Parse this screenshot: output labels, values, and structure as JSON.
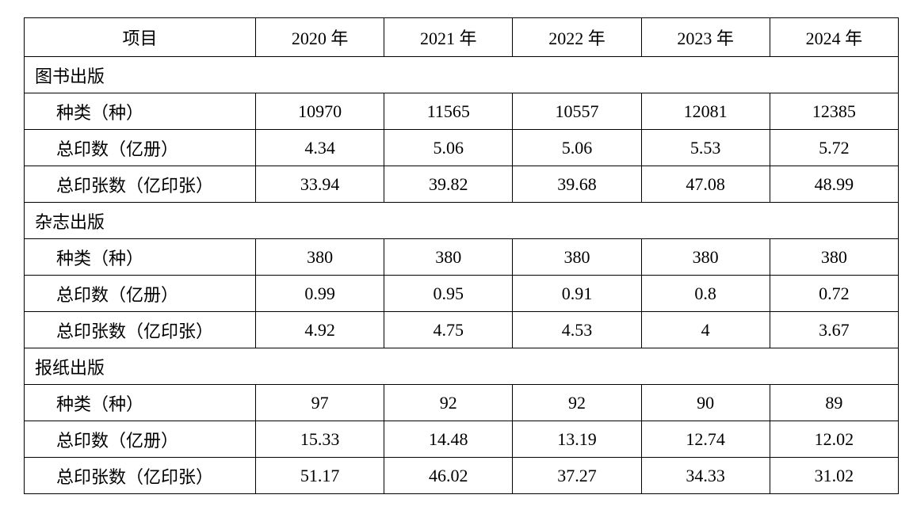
{
  "table": {
    "header": [
      "项目",
      "2020 年",
      "2021 年",
      "2022 年",
      "2023 年",
      "2024 年"
    ],
    "sections": [
      {
        "title": "图书出版",
        "rows": [
          {
            "label": "种类（种）",
            "cells": [
              "10970",
              "11565",
              "10557",
              "12081",
              "12385"
            ]
          },
          {
            "label": "总印数（亿册）",
            "cells": [
              "4.34",
              "5.06",
              "5.06",
              "5.53",
              "5.72"
            ]
          },
          {
            "label": "总印张数（亿印张）",
            "cells": [
              "33.94",
              "39.82",
              "39.68",
              "47.08",
              "48.99"
            ]
          }
        ]
      },
      {
        "title": "杂志出版",
        "rows": [
          {
            "label": "种类（种）",
            "cells": [
              "380",
              "380",
              "380",
              "380",
              "380"
            ]
          },
          {
            "label": "总印数（亿册）",
            "cells": [
              "0.99",
              "0.95",
              "0.91",
              "0.8",
              "0.72"
            ]
          },
          {
            "label": "总印张数（亿印张）",
            "cells": [
              "4.92",
              "4.75",
              "4.53",
              "4",
              "3.67"
            ]
          }
        ]
      },
      {
        "title": "报纸出版",
        "rows": [
          {
            "label": "种类（种）",
            "cells": [
              "97",
              "92",
              "92",
              "90",
              "89"
            ]
          },
          {
            "label": "总印数（亿册）",
            "cells": [
              "15.33",
              "14.48",
              "13.19",
              "12.74",
              "12.02"
            ]
          },
          {
            "label": "总印张数（亿印张）",
            "cells": [
              "51.17",
              "46.02",
              "37.27",
              "34.33",
              "31.02"
            ]
          }
        ]
      }
    ]
  }
}
